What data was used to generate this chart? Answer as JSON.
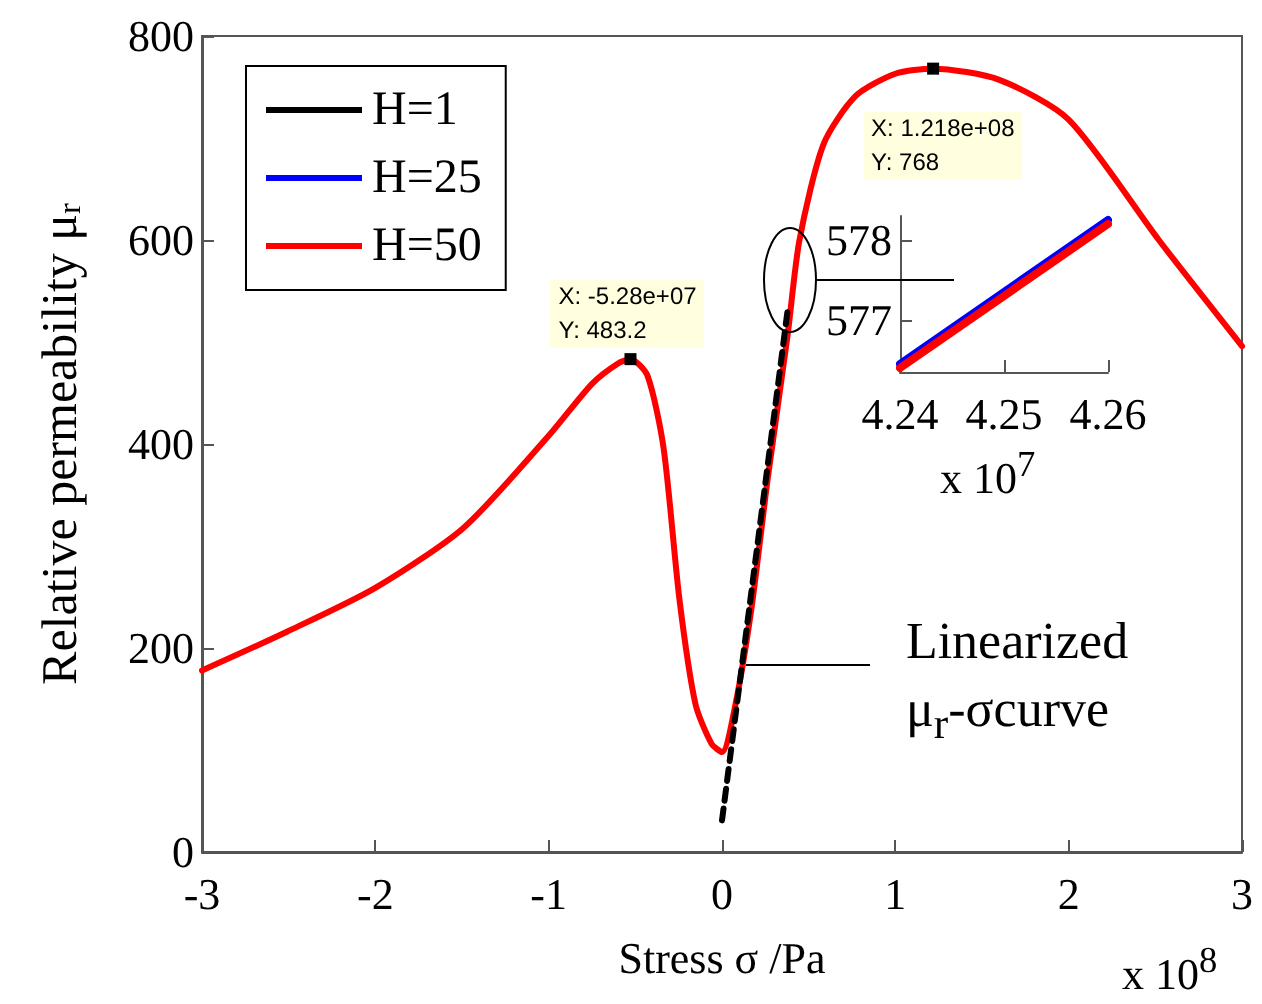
{
  "chart_data": [
    {
      "type": "line",
      "xlabel": "Stress σ /Pa",
      "ylabel": "Relative permeability μ$_{r}$",
      "xlim": [
        -3,
        3
      ],
      "xticks": [
        -3,
        -2,
        -1,
        0,
        1,
        2,
        3
      ],
      "ylim": [
        0,
        800
      ],
      "yticks": [
        0,
        200,
        400,
        600,
        800
      ],
      "legend": "top left",
      "series": [
        {
          "name": "H=1",
          "color": "#000000"
        },
        {
          "name": "H=25",
          "color": "#0000ff"
        },
        {
          "name": "H=50",
          "color": "#ff0000",
          "x": [
            -3,
            -2.51,
            -2,
            -1.49,
            -1,
            -0.75,
            -0.6,
            -0.528,
            -0.43,
            -0.337,
            -0.245,
            -0.153,
            -0.06,
            0,
            0.078,
            0.17,
            0.263,
            0.378,
            0.447,
            0.586,
            0.77,
            1,
            1.218,
            1.6,
            2,
            2.52,
            3
          ],
          "values": [
            178,
            216,
            259,
            318,
            408,
            459,
            479,
            483.2,
            467,
            396,
            247,
            145,
            106,
            98,
            145,
            239,
            365,
            506,
            600,
            694,
            741,
            763,
            768,
            757,
            718,
            600,
            496
          ]
        },
        {
          "color": "#000000",
          "line_style": "dashed",
          "x": [
            0,
            0.38
          ],
          "values": [
            31,
            533
          ]
        }
      ],
      "annotations": [
        {
          "text": "X: -5.28e+07\nY: 483.2",
          "x": -0.528,
          "y": 483.2
        },
        {
          "text": "X: 1.218e+08\nY: 768",
          "x": 1.218,
          "y": 768
        },
        "Linearized\nμ$_{r}$-σcurve",
        "x 10$^{8}$"
      ]
    },
    {
      "type": "line",
      "xlim": [
        4.24,
        4.26
      ],
      "xticks": [
        4.24,
        4.25,
        4.26
      ],
      "ylim": [
        576.35,
        578.3
      ],
      "yticks": [
        577,
        578
      ],
      "series": [
        {
          "color": "#0000ff",
          "x": [
            4.24,
            4.26
          ],
          "values": [
            576.45,
            578.25
          ]
        },
        {
          "color": "#ff0000",
          "x": [
            4.24,
            4.26
          ],
          "values": [
            576.4,
            578.2
          ]
        }
      ],
      "annotations": [
        "x 10$^{7}$"
      ]
    }
  ]
}
